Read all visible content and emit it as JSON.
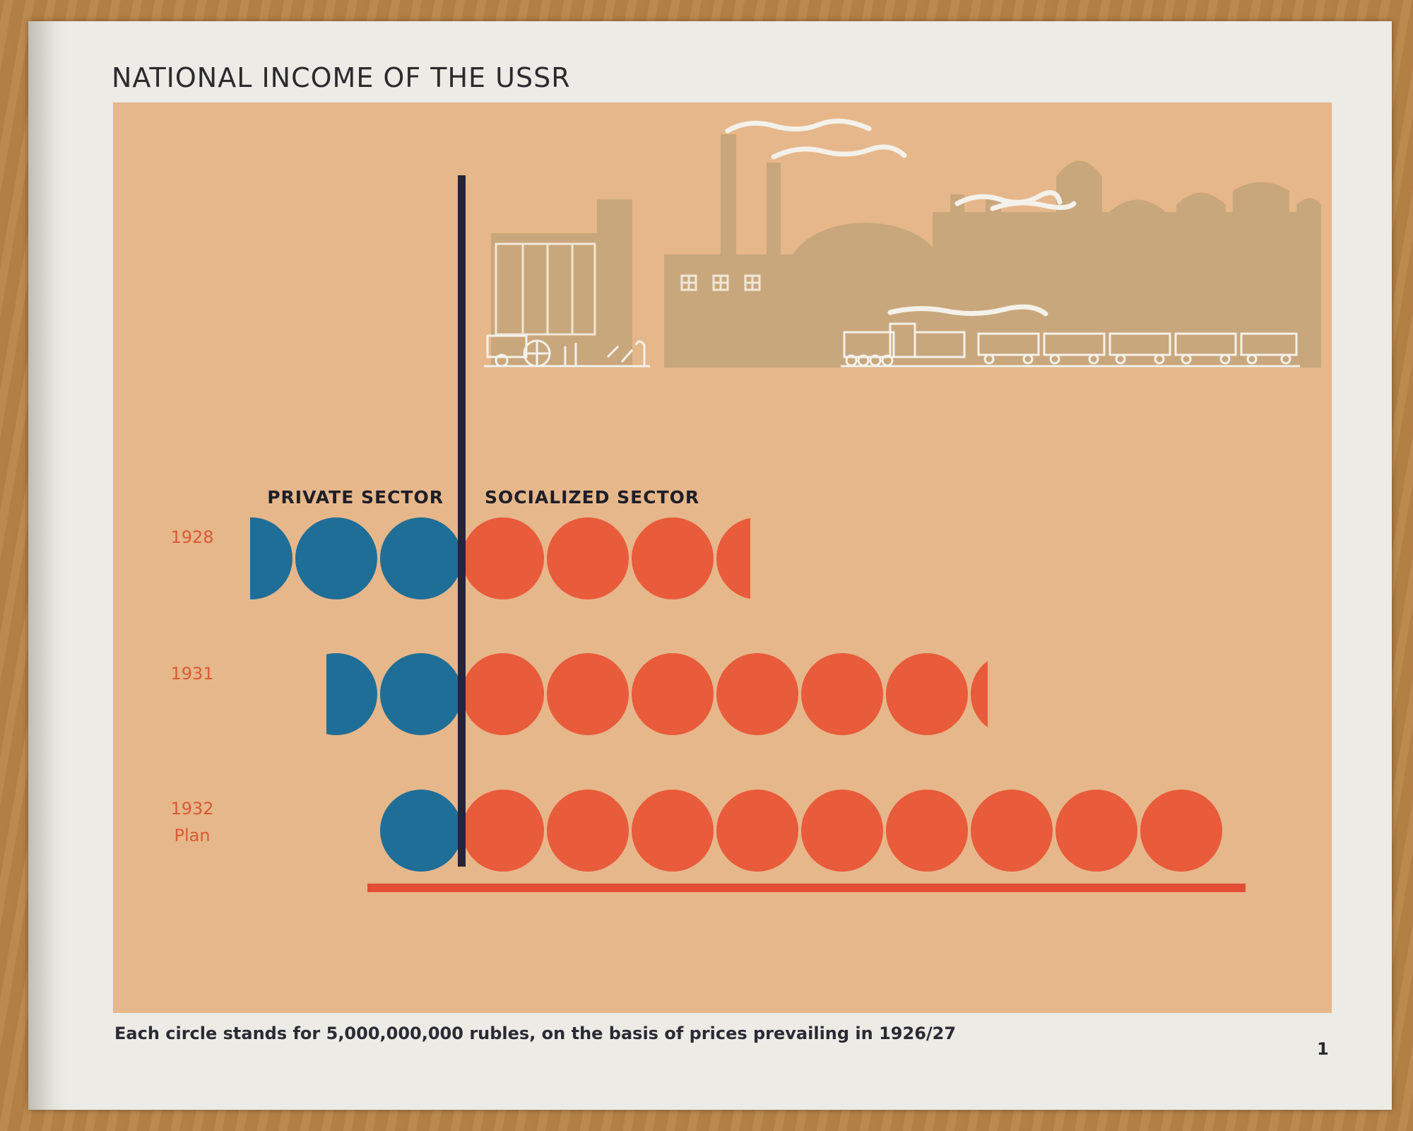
{
  "title": "NATIONAL INCOME OF THE USSR",
  "footnote": "Each circle stands for 5,000,000,000 rubles, on the basis of prices prevailing in 1926/27",
  "page_number": "1",
  "colors": {
    "panel": "#e6b78a",
    "private": "#1f6e97",
    "socialized": "#e85b3b",
    "divider": "#25243a",
    "industry": "#c9a77c",
    "label": "#d95a35"
  },
  "icons": [
    "factory-skyline-illustration",
    "steam-locomotive-icon",
    "tractor-icon",
    "grain-elevator-icon"
  ],
  "chart_data": {
    "type": "bar",
    "unit": "circles",
    "categories": [
      "1928",
      "1931",
      "1932 Plan"
    ],
    "series": [
      {
        "name": "PRIVATE SECTOR",
        "values": [
          2.5,
          1.6,
          1.0
        ]
      },
      {
        "name": "SOCIALIZED SECTOR",
        "values": [
          3.4,
          6.2,
          9.0
        ]
      }
    ]
  }
}
